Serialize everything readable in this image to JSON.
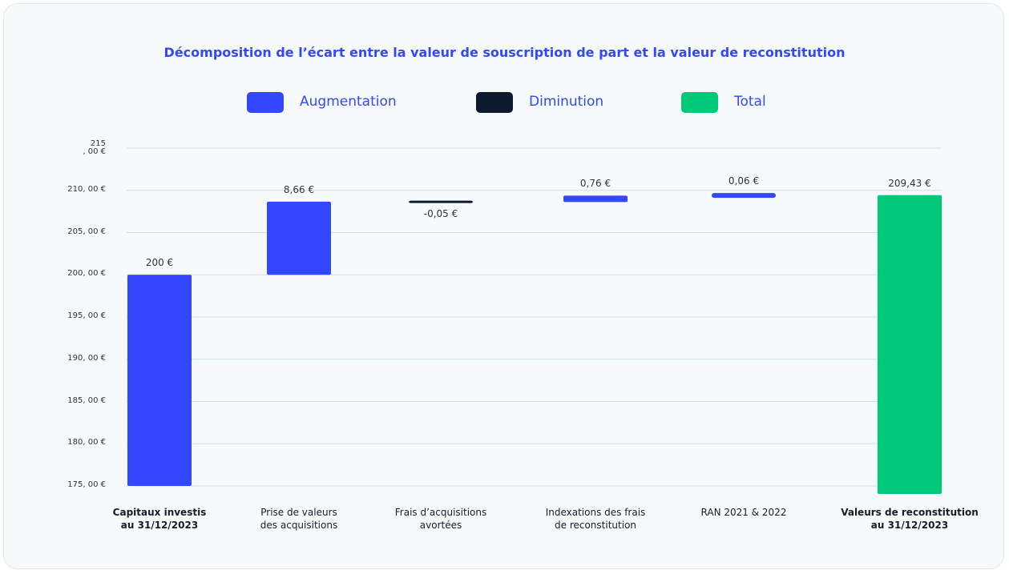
{
  "chart_data": {
    "type": "waterfall",
    "title": "Décomposition de l’écart entre la valeur de souscription de part et la valeur de reconstitution",
    "legend": [
      {
        "name": "Augmentation",
        "color": "#3347ff"
      },
      {
        "name": "Diminution",
        "color": "#0d1a2e"
      },
      {
        "name": "Total",
        "color": "#00c97a"
      }
    ],
    "categories": [
      "Capitaux investis\nau 31/12/2023",
      "Prise de valeurs\ndes acquisitions",
      "Frais d’acquisitions\navortées",
      "Indexations des frais\nde reconstitution",
      "RAN 2021 & 2022",
      "Valeurs de reconstitution\nau 31/12/2023"
    ],
    "measure": [
      "absolute",
      "relative",
      "relative",
      "relative",
      "relative",
      "total"
    ],
    "values": [
      200,
      8.66,
      -0.05,
      0.76,
      0.06,
      209.43
    ],
    "value_labels": [
      "200 €",
      "8,66 €",
      "-0,05 €",
      "0,76 €",
      "0,06 €",
      "209,43 €"
    ],
    "ylim": [
      175,
      215
    ],
    "yticks": [
      {
        "value": 175,
        "label": "175, 00 €"
      },
      {
        "value": 180,
        "label": "180, 00 €"
      },
      {
        "value": 185,
        "label": "185, 00 €"
      },
      {
        "value": 190,
        "label": "190, 00 €"
      },
      {
        "value": 195,
        "label": "195, 00 €"
      },
      {
        "value": 200,
        "label": "200, 00 €"
      },
      {
        "value": 205,
        "label": "205, 00 €"
      },
      {
        "value": 210,
        "label": "210, 00 €"
      },
      {
        "value": 215,
        "label": "215\n, 00 €"
      }
    ],
    "grid": true
  }
}
